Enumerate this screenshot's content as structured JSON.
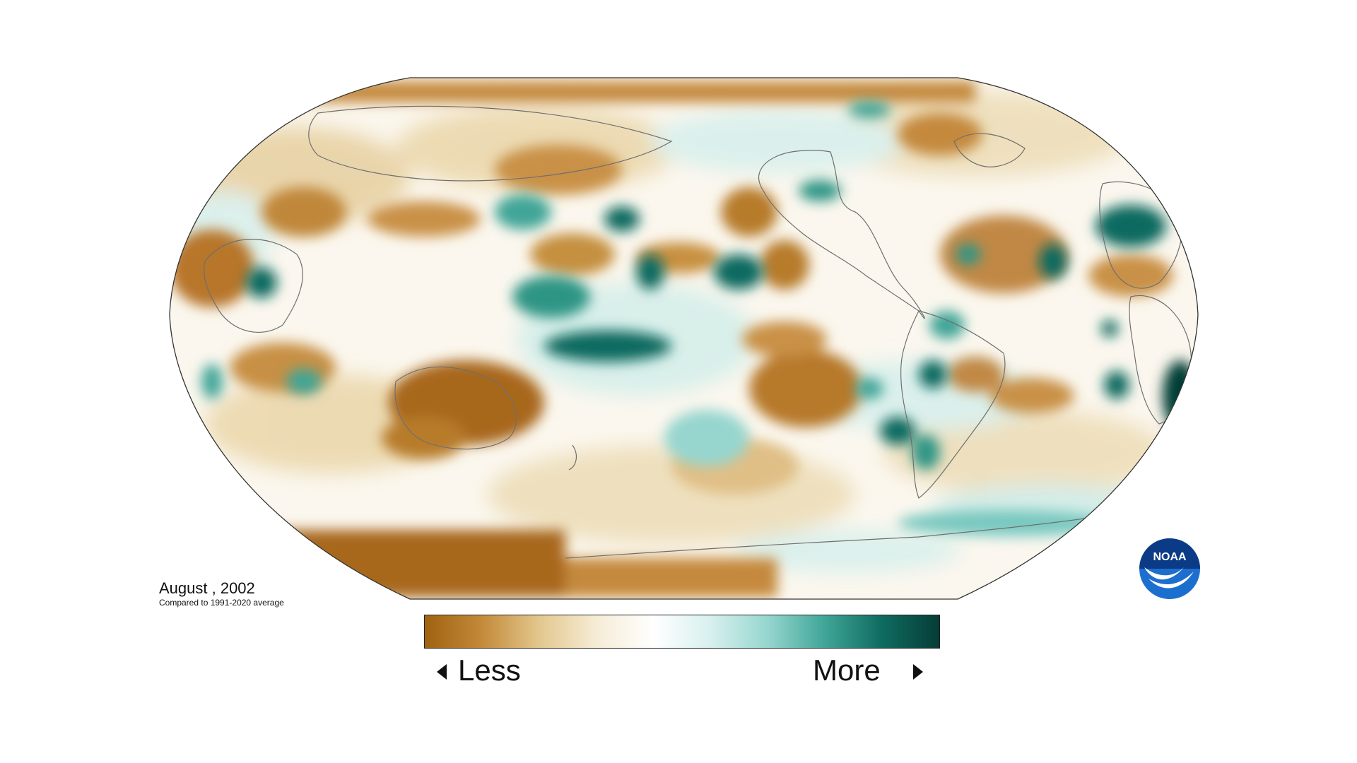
{
  "caption": {
    "title": "August , 2002",
    "subtitle": "Compared to 1991-2020 average"
  },
  "legend": {
    "less_label": "Less",
    "more_label": "More",
    "colors": [
      "#a0620f",
      "#c38a3a",
      "#e3c78d",
      "#f6ecd6",
      "#ffffff",
      "#d7f0ee",
      "#96d6cf",
      "#3fa597",
      "#0f6b60",
      "#053d36"
    ]
  },
  "logo": {
    "text": "NOAA",
    "icon": "noaa-logo"
  },
  "map": {
    "projection": "Robinson",
    "ocean_color": "#ffffff",
    "coastline_color": "#6f6f6f"
  }
}
